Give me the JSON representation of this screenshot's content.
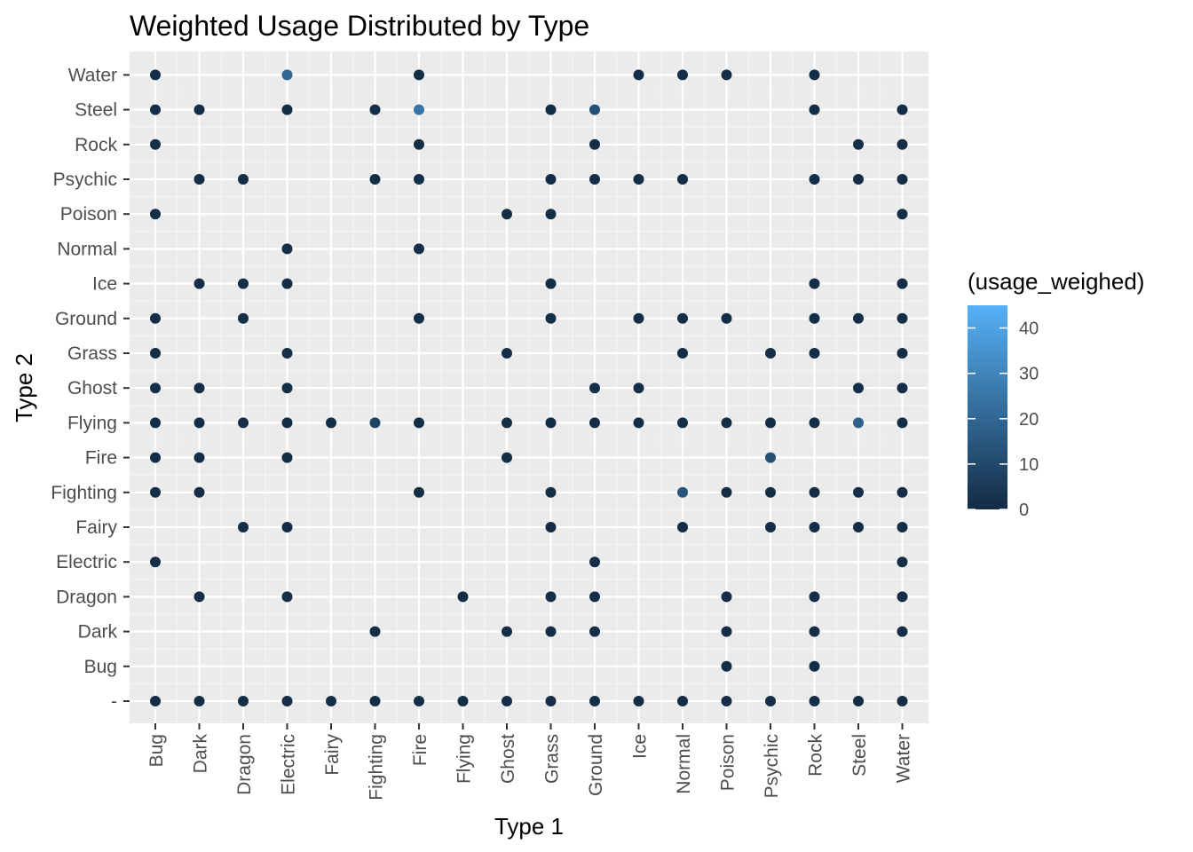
{
  "chart_data": {
    "type": "scatter",
    "title": "Weighted Usage Distributed by Type",
    "xlabel": "Type 1",
    "ylabel": "Type 2",
    "x_categories": [
      "Bug",
      "Dark",
      "Dragon",
      "Electric",
      "Fairy",
      "Fighting",
      "Fire",
      "Flying",
      "Ghost",
      "Grass",
      "Ground",
      "Ice",
      "Normal",
      "Poison",
      "Psychic",
      "Rock",
      "Steel",
      "Water"
    ],
    "y_categories": [
      "-",
      "Bug",
      "Dark",
      "Dragon",
      "Electric",
      "Fairy",
      "Fighting",
      "Fire",
      "Flying",
      "Ghost",
      "Grass",
      "Ground",
      "Ice",
      "Normal",
      "Poison",
      "Psychic",
      "Rock",
      "Steel",
      "Water"
    ],
    "color_legend": {
      "title": "(usage_weighed)",
      "min": 0,
      "max": 45,
      "ticks": [
        0,
        10,
        20,
        30,
        40
      ],
      "low_color": "#132b43",
      "high_color": "#56b1f7"
    },
    "grid": true,
    "legend_position": "right",
    "points": [
      {
        "x": "Bug",
        "y": "Water",
        "v": 1
      },
      {
        "x": "Electric",
        "y": "Water",
        "v": 20
      },
      {
        "x": "Fire",
        "y": "Water",
        "v": 1
      },
      {
        "x": "Ice",
        "y": "Water",
        "v": 1
      },
      {
        "x": "Normal",
        "y": "Water",
        "v": 1
      },
      {
        "x": "Poison",
        "y": "Water",
        "v": 1
      },
      {
        "x": "Rock",
        "y": "Water",
        "v": 1
      },
      {
        "x": "Bug",
        "y": "Steel",
        "v": 1
      },
      {
        "x": "Dark",
        "y": "Steel",
        "v": 1
      },
      {
        "x": "Electric",
        "y": "Steel",
        "v": 1
      },
      {
        "x": "Fighting",
        "y": "Steel",
        "v": 1
      },
      {
        "x": "Fire",
        "y": "Steel",
        "v": 25
      },
      {
        "x": "Grass",
        "y": "Steel",
        "v": 1
      },
      {
        "x": "Ground",
        "y": "Steel",
        "v": 12
      },
      {
        "x": "Rock",
        "y": "Steel",
        "v": 1
      },
      {
        "x": "Water",
        "y": "Steel",
        "v": 1
      },
      {
        "x": "Bug",
        "y": "Rock",
        "v": 1
      },
      {
        "x": "Fire",
        "y": "Rock",
        "v": 1
      },
      {
        "x": "Ground",
        "y": "Rock",
        "v": 1
      },
      {
        "x": "Steel",
        "y": "Rock",
        "v": 1
      },
      {
        "x": "Water",
        "y": "Rock",
        "v": 1
      },
      {
        "x": "Dark",
        "y": "Psychic",
        "v": 1
      },
      {
        "x": "Dragon",
        "y": "Psychic",
        "v": 1
      },
      {
        "x": "Fighting",
        "y": "Psychic",
        "v": 1
      },
      {
        "x": "Fire",
        "y": "Psychic",
        "v": 1
      },
      {
        "x": "Grass",
        "y": "Psychic",
        "v": 1
      },
      {
        "x": "Ground",
        "y": "Psychic",
        "v": 1
      },
      {
        "x": "Ice",
        "y": "Psychic",
        "v": 1
      },
      {
        "x": "Normal",
        "y": "Psychic",
        "v": 1
      },
      {
        "x": "Rock",
        "y": "Psychic",
        "v": 1
      },
      {
        "x": "Steel",
        "y": "Psychic",
        "v": 1
      },
      {
        "x": "Water",
        "y": "Psychic",
        "v": 1
      },
      {
        "x": "Bug",
        "y": "Poison",
        "v": 1
      },
      {
        "x": "Ghost",
        "y": "Poison",
        "v": 1
      },
      {
        "x": "Grass",
        "y": "Poison",
        "v": 1
      },
      {
        "x": "Water",
        "y": "Poison",
        "v": 1
      },
      {
        "x": "Electric",
        "y": "Normal",
        "v": 1
      },
      {
        "x": "Fire",
        "y": "Normal",
        "v": 1
      },
      {
        "x": "Dark",
        "y": "Ice",
        "v": 1
      },
      {
        "x": "Dragon",
        "y": "Ice",
        "v": 1
      },
      {
        "x": "Electric",
        "y": "Ice",
        "v": 1
      },
      {
        "x": "Grass",
        "y": "Ice",
        "v": 1
      },
      {
        "x": "Rock",
        "y": "Ice",
        "v": 1
      },
      {
        "x": "Water",
        "y": "Ice",
        "v": 1
      },
      {
        "x": "Bug",
        "y": "Ground",
        "v": 1
      },
      {
        "x": "Dragon",
        "y": "Ground",
        "v": 1
      },
      {
        "x": "Fire",
        "y": "Ground",
        "v": 1
      },
      {
        "x": "Grass",
        "y": "Ground",
        "v": 1
      },
      {
        "x": "Ice",
        "y": "Ground",
        "v": 1
      },
      {
        "x": "Normal",
        "y": "Ground",
        "v": 1
      },
      {
        "x": "Poison",
        "y": "Ground",
        "v": 1
      },
      {
        "x": "Rock",
        "y": "Ground",
        "v": 1
      },
      {
        "x": "Steel",
        "y": "Ground",
        "v": 1
      },
      {
        "x": "Water",
        "y": "Ground",
        "v": 1
      },
      {
        "x": "Bug",
        "y": "Grass",
        "v": 1
      },
      {
        "x": "Electric",
        "y": "Grass",
        "v": 1
      },
      {
        "x": "Ghost",
        "y": "Grass",
        "v": 1
      },
      {
        "x": "Normal",
        "y": "Grass",
        "v": 1
      },
      {
        "x": "Psychic",
        "y": "Grass",
        "v": 1
      },
      {
        "x": "Rock",
        "y": "Grass",
        "v": 1
      },
      {
        "x": "Water",
        "y": "Grass",
        "v": 1
      },
      {
        "x": "Bug",
        "y": "Ghost",
        "v": 1
      },
      {
        "x": "Dark",
        "y": "Ghost",
        "v": 1
      },
      {
        "x": "Electric",
        "y": "Ghost",
        "v": 1
      },
      {
        "x": "Ground",
        "y": "Ghost",
        "v": 1
      },
      {
        "x": "Ice",
        "y": "Ghost",
        "v": 1
      },
      {
        "x": "Steel",
        "y": "Ghost",
        "v": 1
      },
      {
        "x": "Water",
        "y": "Ghost",
        "v": 1
      },
      {
        "x": "Bug",
        "y": "Flying",
        "v": 1
      },
      {
        "x": "Dark",
        "y": "Flying",
        "v": 1
      },
      {
        "x": "Dragon",
        "y": "Flying",
        "v": 1
      },
      {
        "x": "Electric",
        "y": "Flying",
        "v": 1
      },
      {
        "x": "Fairy",
        "y": "Flying",
        "v": 1
      },
      {
        "x": "Fighting",
        "y": "Flying",
        "v": 8
      },
      {
        "x": "Fire",
        "y": "Flying",
        "v": 1
      },
      {
        "x": "Ghost",
        "y": "Flying",
        "v": 1
      },
      {
        "x": "Grass",
        "y": "Flying",
        "v": 1
      },
      {
        "x": "Ground",
        "y": "Flying",
        "v": 1
      },
      {
        "x": "Ice",
        "y": "Flying",
        "v": 1
      },
      {
        "x": "Normal",
        "y": "Flying",
        "v": 1
      },
      {
        "x": "Poison",
        "y": "Flying",
        "v": 1
      },
      {
        "x": "Psychic",
        "y": "Flying",
        "v": 1
      },
      {
        "x": "Rock",
        "y": "Flying",
        "v": 1
      },
      {
        "x": "Steel",
        "y": "Flying",
        "v": 18
      },
      {
        "x": "Water",
        "y": "Flying",
        "v": 1
      },
      {
        "x": "Bug",
        "y": "Fire",
        "v": 1
      },
      {
        "x": "Dark",
        "y": "Fire",
        "v": 1
      },
      {
        "x": "Electric",
        "y": "Fire",
        "v": 1
      },
      {
        "x": "Ghost",
        "y": "Fire",
        "v": 1
      },
      {
        "x": "Psychic",
        "y": "Fire",
        "v": 12
      },
      {
        "x": "Bug",
        "y": "Fighting",
        "v": 1
      },
      {
        "x": "Dark",
        "y": "Fighting",
        "v": 1
      },
      {
        "x": "Fire",
        "y": "Fighting",
        "v": 1
      },
      {
        "x": "Grass",
        "y": "Fighting",
        "v": 1
      },
      {
        "x": "Normal",
        "y": "Fighting",
        "v": 14
      },
      {
        "x": "Poison",
        "y": "Fighting",
        "v": 1
      },
      {
        "x": "Psychic",
        "y": "Fighting",
        "v": 1
      },
      {
        "x": "Rock",
        "y": "Fighting",
        "v": 1
      },
      {
        "x": "Steel",
        "y": "Fighting",
        "v": 1
      },
      {
        "x": "Water",
        "y": "Fighting",
        "v": 1
      },
      {
        "x": "Dragon",
        "y": "Fairy",
        "v": 1
      },
      {
        "x": "Electric",
        "y": "Fairy",
        "v": 1
      },
      {
        "x": "Grass",
        "y": "Fairy",
        "v": 1
      },
      {
        "x": "Normal",
        "y": "Fairy",
        "v": 1
      },
      {
        "x": "Psychic",
        "y": "Fairy",
        "v": 1
      },
      {
        "x": "Rock",
        "y": "Fairy",
        "v": 1
      },
      {
        "x": "Steel",
        "y": "Fairy",
        "v": 1
      },
      {
        "x": "Water",
        "y": "Fairy",
        "v": 1
      },
      {
        "x": "Bug",
        "y": "Electric",
        "v": 1
      },
      {
        "x": "Ground",
        "y": "Electric",
        "v": 1
      },
      {
        "x": "Water",
        "y": "Electric",
        "v": 1
      },
      {
        "x": "Dark",
        "y": "Dragon",
        "v": 1
      },
      {
        "x": "Electric",
        "y": "Dragon",
        "v": 1
      },
      {
        "x": "Flying",
        "y": "Dragon",
        "v": 1
      },
      {
        "x": "Grass",
        "y": "Dragon",
        "v": 1
      },
      {
        "x": "Ground",
        "y": "Dragon",
        "v": 1
      },
      {
        "x": "Poison",
        "y": "Dragon",
        "v": 1
      },
      {
        "x": "Rock",
        "y": "Dragon",
        "v": 1
      },
      {
        "x": "Water",
        "y": "Dragon",
        "v": 1
      },
      {
        "x": "Fighting",
        "y": "Dark",
        "v": 1
      },
      {
        "x": "Ghost",
        "y": "Dark",
        "v": 1
      },
      {
        "x": "Grass",
        "y": "Dark",
        "v": 1
      },
      {
        "x": "Ground",
        "y": "Dark",
        "v": 1
      },
      {
        "x": "Poison",
        "y": "Dark",
        "v": 1
      },
      {
        "x": "Rock",
        "y": "Dark",
        "v": 1
      },
      {
        "x": "Water",
        "y": "Dark",
        "v": 1
      },
      {
        "x": "Poison",
        "y": "Bug",
        "v": 1
      },
      {
        "x": "Rock",
        "y": "Bug",
        "v": 1
      },
      {
        "x": "Bug",
        "y": "-",
        "v": 1
      },
      {
        "x": "Dark",
        "y": "-",
        "v": 1
      },
      {
        "x": "Dragon",
        "y": "-",
        "v": 1
      },
      {
        "x": "Electric",
        "y": "-",
        "v": 1
      },
      {
        "x": "Fairy",
        "y": "-",
        "v": 1
      },
      {
        "x": "Fighting",
        "y": "-",
        "v": 1
      },
      {
        "x": "Fire",
        "y": "-",
        "v": 1
      },
      {
        "x": "Flying",
        "y": "-",
        "v": 1
      },
      {
        "x": "Ghost",
        "y": "-",
        "v": 1
      },
      {
        "x": "Grass",
        "y": "-",
        "v": 1
      },
      {
        "x": "Ground",
        "y": "-",
        "v": 1
      },
      {
        "x": "Ice",
        "y": "-",
        "v": 1
      },
      {
        "x": "Normal",
        "y": "-",
        "v": 1
      },
      {
        "x": "Poison",
        "y": "-",
        "v": 1
      },
      {
        "x": "Psychic",
        "y": "-",
        "v": 1
      },
      {
        "x": "Rock",
        "y": "-",
        "v": 1
      },
      {
        "x": "Steel",
        "y": "-",
        "v": 1
      },
      {
        "x": "Water",
        "y": "-",
        "v": 1
      }
    ]
  }
}
